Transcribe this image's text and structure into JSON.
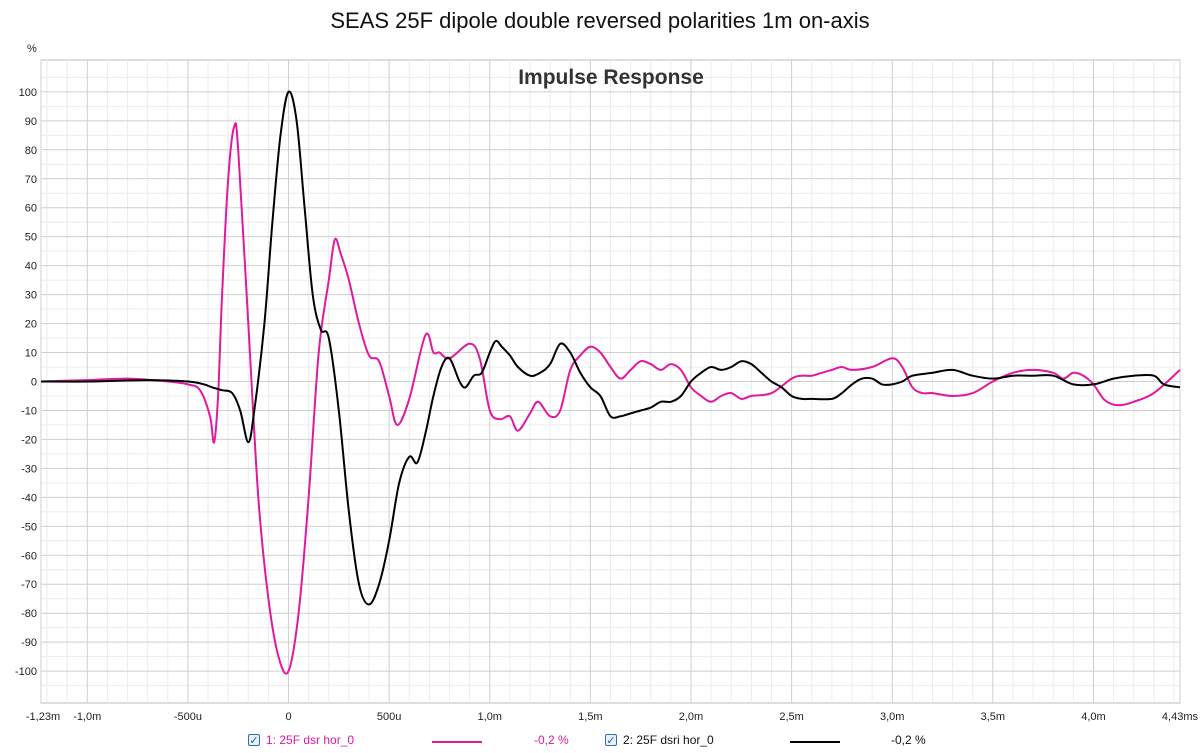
{
  "title": "SEAS 25F dipole double reversed polarities 1m on-axis",
  "chart_data": {
    "type": "line",
    "plot_title": "Impulse Response",
    "y_unit": "%",
    "x_unit": "ms",
    "xlim": [
      -1.23,
      4.43
    ],
    "ylim": [
      -111,
      111
    ],
    "grid": true,
    "x_ticks": [
      {
        "v": -1.23,
        "label": "-1,23m"
      },
      {
        "v": -1.0,
        "label": "-1,0m"
      },
      {
        "v": -0.5,
        "label": "-500u"
      },
      {
        "v": 0,
        "label": "0"
      },
      {
        "v": 0.5,
        "label": "500u"
      },
      {
        "v": 1.0,
        "label": "1,0m"
      },
      {
        "v": 1.5,
        "label": "1,5m"
      },
      {
        "v": 2.0,
        "label": "2,0m"
      },
      {
        "v": 2.5,
        "label": "2,5m"
      },
      {
        "v": 3.0,
        "label": "3,0m"
      },
      {
        "v": 3.5,
        "label": "3,5m"
      },
      {
        "v": 4.0,
        "label": "4,0m"
      },
      {
        "v": 4.43,
        "label": "4,43ms"
      }
    ],
    "y_ticks": [
      100,
      90,
      80,
      70,
      60,
      50,
      40,
      30,
      20,
      10,
      0,
      -10,
      -20,
      -30,
      -40,
      -50,
      -60,
      -70,
      -80,
      -90,
      -100
    ],
    "series": [
      {
        "name": "1: 25F dsr hor_0",
        "color": "#e0199e",
        "offset_label": "-0,2 %",
        "points": [
          [
            -1.23,
            0
          ],
          [
            -1.0,
            0.5
          ],
          [
            -0.8,
            1
          ],
          [
            -0.6,
            0
          ],
          [
            -0.5,
            -1
          ],
          [
            -0.44,
            -3
          ],
          [
            -0.39,
            -12
          ],
          [
            -0.37,
            -21
          ],
          [
            -0.35,
            -5
          ],
          [
            -0.33,
            30
          ],
          [
            -0.3,
            70
          ],
          [
            -0.27,
            88
          ],
          [
            -0.25,
            80
          ],
          [
            -0.2,
            20
          ],
          [
            -0.15,
            -40
          ],
          [
            -0.1,
            -75
          ],
          [
            -0.05,
            -95
          ],
          [
            0,
            -100
          ],
          [
            0.05,
            -80
          ],
          [
            0.1,
            -40
          ],
          [
            0.15,
            10
          ],
          [
            0.2,
            35
          ],
          [
            0.23,
            49
          ],
          [
            0.26,
            44
          ],
          [
            0.3,
            35
          ],
          [
            0.35,
            20
          ],
          [
            0.4,
            9
          ],
          [
            0.45,
            7
          ],
          [
            0.5,
            -5
          ],
          [
            0.54,
            -15
          ],
          [
            0.6,
            -6
          ],
          [
            0.68,
            16
          ],
          [
            0.72,
            10
          ],
          [
            0.75,
            10
          ],
          [
            0.8,
            8
          ],
          [
            0.9,
            13
          ],
          [
            0.95,
            8
          ],
          [
            1.0,
            -10
          ],
          [
            1.05,
            -13
          ],
          [
            1.1,
            -12
          ],
          [
            1.14,
            -17
          ],
          [
            1.2,
            -11
          ],
          [
            1.24,
            -7
          ],
          [
            1.3,
            -12
          ],
          [
            1.35,
            -10
          ],
          [
            1.4,
            4
          ],
          [
            1.45,
            9
          ],
          [
            1.5,
            12
          ],
          [
            1.55,
            10
          ],
          [
            1.6,
            5
          ],
          [
            1.65,
            1
          ],
          [
            1.7,
            4
          ],
          [
            1.75,
            7
          ],
          [
            1.8,
            6
          ],
          [
            1.85,
            4
          ],
          [
            1.9,
            6
          ],
          [
            1.95,
            4
          ],
          [
            2.0,
            -2
          ],
          [
            2.05,
            -5
          ],
          [
            2.1,
            -7
          ],
          [
            2.15,
            -5
          ],
          [
            2.2,
            -4
          ],
          [
            2.25,
            -6
          ],
          [
            2.3,
            -5
          ],
          [
            2.4,
            -4
          ],
          [
            2.5,
            1
          ],
          [
            2.55,
            2
          ],
          [
            2.6,
            2
          ],
          [
            2.65,
            3
          ],
          [
            2.7,
            4
          ],
          [
            2.75,
            5
          ],
          [
            2.8,
            4
          ],
          [
            2.9,
            5
          ],
          [
            3.0,
            8
          ],
          [
            3.05,
            5
          ],
          [
            3.1,
            -2
          ],
          [
            3.15,
            -4
          ],
          [
            3.2,
            -4
          ],
          [
            3.3,
            -5
          ],
          [
            3.4,
            -4
          ],
          [
            3.5,
            0
          ],
          [
            3.6,
            3
          ],
          [
            3.7,
            4
          ],
          [
            3.8,
            3
          ],
          [
            3.85,
            1
          ],
          [
            3.9,
            3
          ],
          [
            3.95,
            2
          ],
          [
            4.0,
            -1
          ],
          [
            4.05,
            -6
          ],
          [
            4.1,
            -8
          ],
          [
            4.15,
            -8
          ],
          [
            4.2,
            -7
          ],
          [
            4.3,
            -4
          ],
          [
            4.43,
            4
          ]
        ]
      },
      {
        "name": "2: 25F dsri hor_0",
        "color": "#000000",
        "offset_label": "-0,2 %",
        "points": [
          [
            -1.23,
            0
          ],
          [
            -1.0,
            0
          ],
          [
            -0.7,
            0.5
          ],
          [
            -0.5,
            0
          ],
          [
            -0.42,
            -1
          ],
          [
            -0.38,
            -2
          ],
          [
            -0.33,
            -3
          ],
          [
            -0.28,
            -4
          ],
          [
            -0.24,
            -10
          ],
          [
            -0.2,
            -21
          ],
          [
            -0.17,
            -10
          ],
          [
            -0.12,
            20
          ],
          [
            -0.08,
            55
          ],
          [
            -0.04,
            85
          ],
          [
            0,
            100
          ],
          [
            0.04,
            90
          ],
          [
            0.08,
            60
          ],
          [
            0.12,
            30
          ],
          [
            0.16,
            18
          ],
          [
            0.2,
            15
          ],
          [
            0.25,
            -10
          ],
          [
            0.3,
            -45
          ],
          [
            0.35,
            -70
          ],
          [
            0.4,
            -77
          ],
          [
            0.45,
            -70
          ],
          [
            0.5,
            -55
          ],
          [
            0.55,
            -35
          ],
          [
            0.6,
            -26
          ],
          [
            0.64,
            -28
          ],
          [
            0.68,
            -18
          ],
          [
            0.72,
            -5
          ],
          [
            0.76,
            5
          ],
          [
            0.8,
            8
          ],
          [
            0.85,
            0
          ],
          [
            0.88,
            -2
          ],
          [
            0.92,
            2
          ],
          [
            0.96,
            3
          ],
          [
            1.0,
            10
          ],
          [
            1.03,
            14
          ],
          [
            1.06,
            12
          ],
          [
            1.1,
            9
          ],
          [
            1.14,
            5
          ],
          [
            1.2,
            2
          ],
          [
            1.25,
            3
          ],
          [
            1.3,
            6
          ],
          [
            1.35,
            13
          ],
          [
            1.4,
            10
          ],
          [
            1.45,
            3
          ],
          [
            1.5,
            -2
          ],
          [
            1.55,
            -5
          ],
          [
            1.6,
            -12
          ],
          [
            1.65,
            -12
          ],
          [
            1.7,
            -11
          ],
          [
            1.75,
            -10
          ],
          [
            1.8,
            -9
          ],
          [
            1.85,
            -7
          ],
          [
            1.9,
            -7
          ],
          [
            1.95,
            -5
          ],
          [
            2.0,
            0
          ],
          [
            2.05,
            3
          ],
          [
            2.1,
            5
          ],
          [
            2.15,
            4
          ],
          [
            2.2,
            5
          ],
          [
            2.25,
            7
          ],
          [
            2.3,
            6
          ],
          [
            2.35,
            3
          ],
          [
            2.4,
            0
          ],
          [
            2.45,
            -2
          ],
          [
            2.5,
            -5
          ],
          [
            2.55,
            -6
          ],
          [
            2.6,
            -6
          ],
          [
            2.7,
            -6
          ],
          [
            2.75,
            -4
          ],
          [
            2.8,
            -1
          ],
          [
            2.85,
            1
          ],
          [
            2.9,
            1
          ],
          [
            2.95,
            -1
          ],
          [
            3.0,
            -1
          ],
          [
            3.05,
            0
          ],
          [
            3.1,
            2
          ],
          [
            3.2,
            3
          ],
          [
            3.3,
            4
          ],
          [
            3.4,
            2
          ],
          [
            3.5,
            1
          ],
          [
            3.6,
            2
          ],
          [
            3.7,
            2
          ],
          [
            3.8,
            2
          ],
          [
            3.9,
            -1
          ],
          [
            4.0,
            -1
          ],
          [
            4.1,
            1
          ],
          [
            4.2,
            2
          ],
          [
            4.3,
            2
          ],
          [
            4.35,
            -1
          ],
          [
            4.43,
            -2
          ]
        ]
      }
    ]
  }
}
